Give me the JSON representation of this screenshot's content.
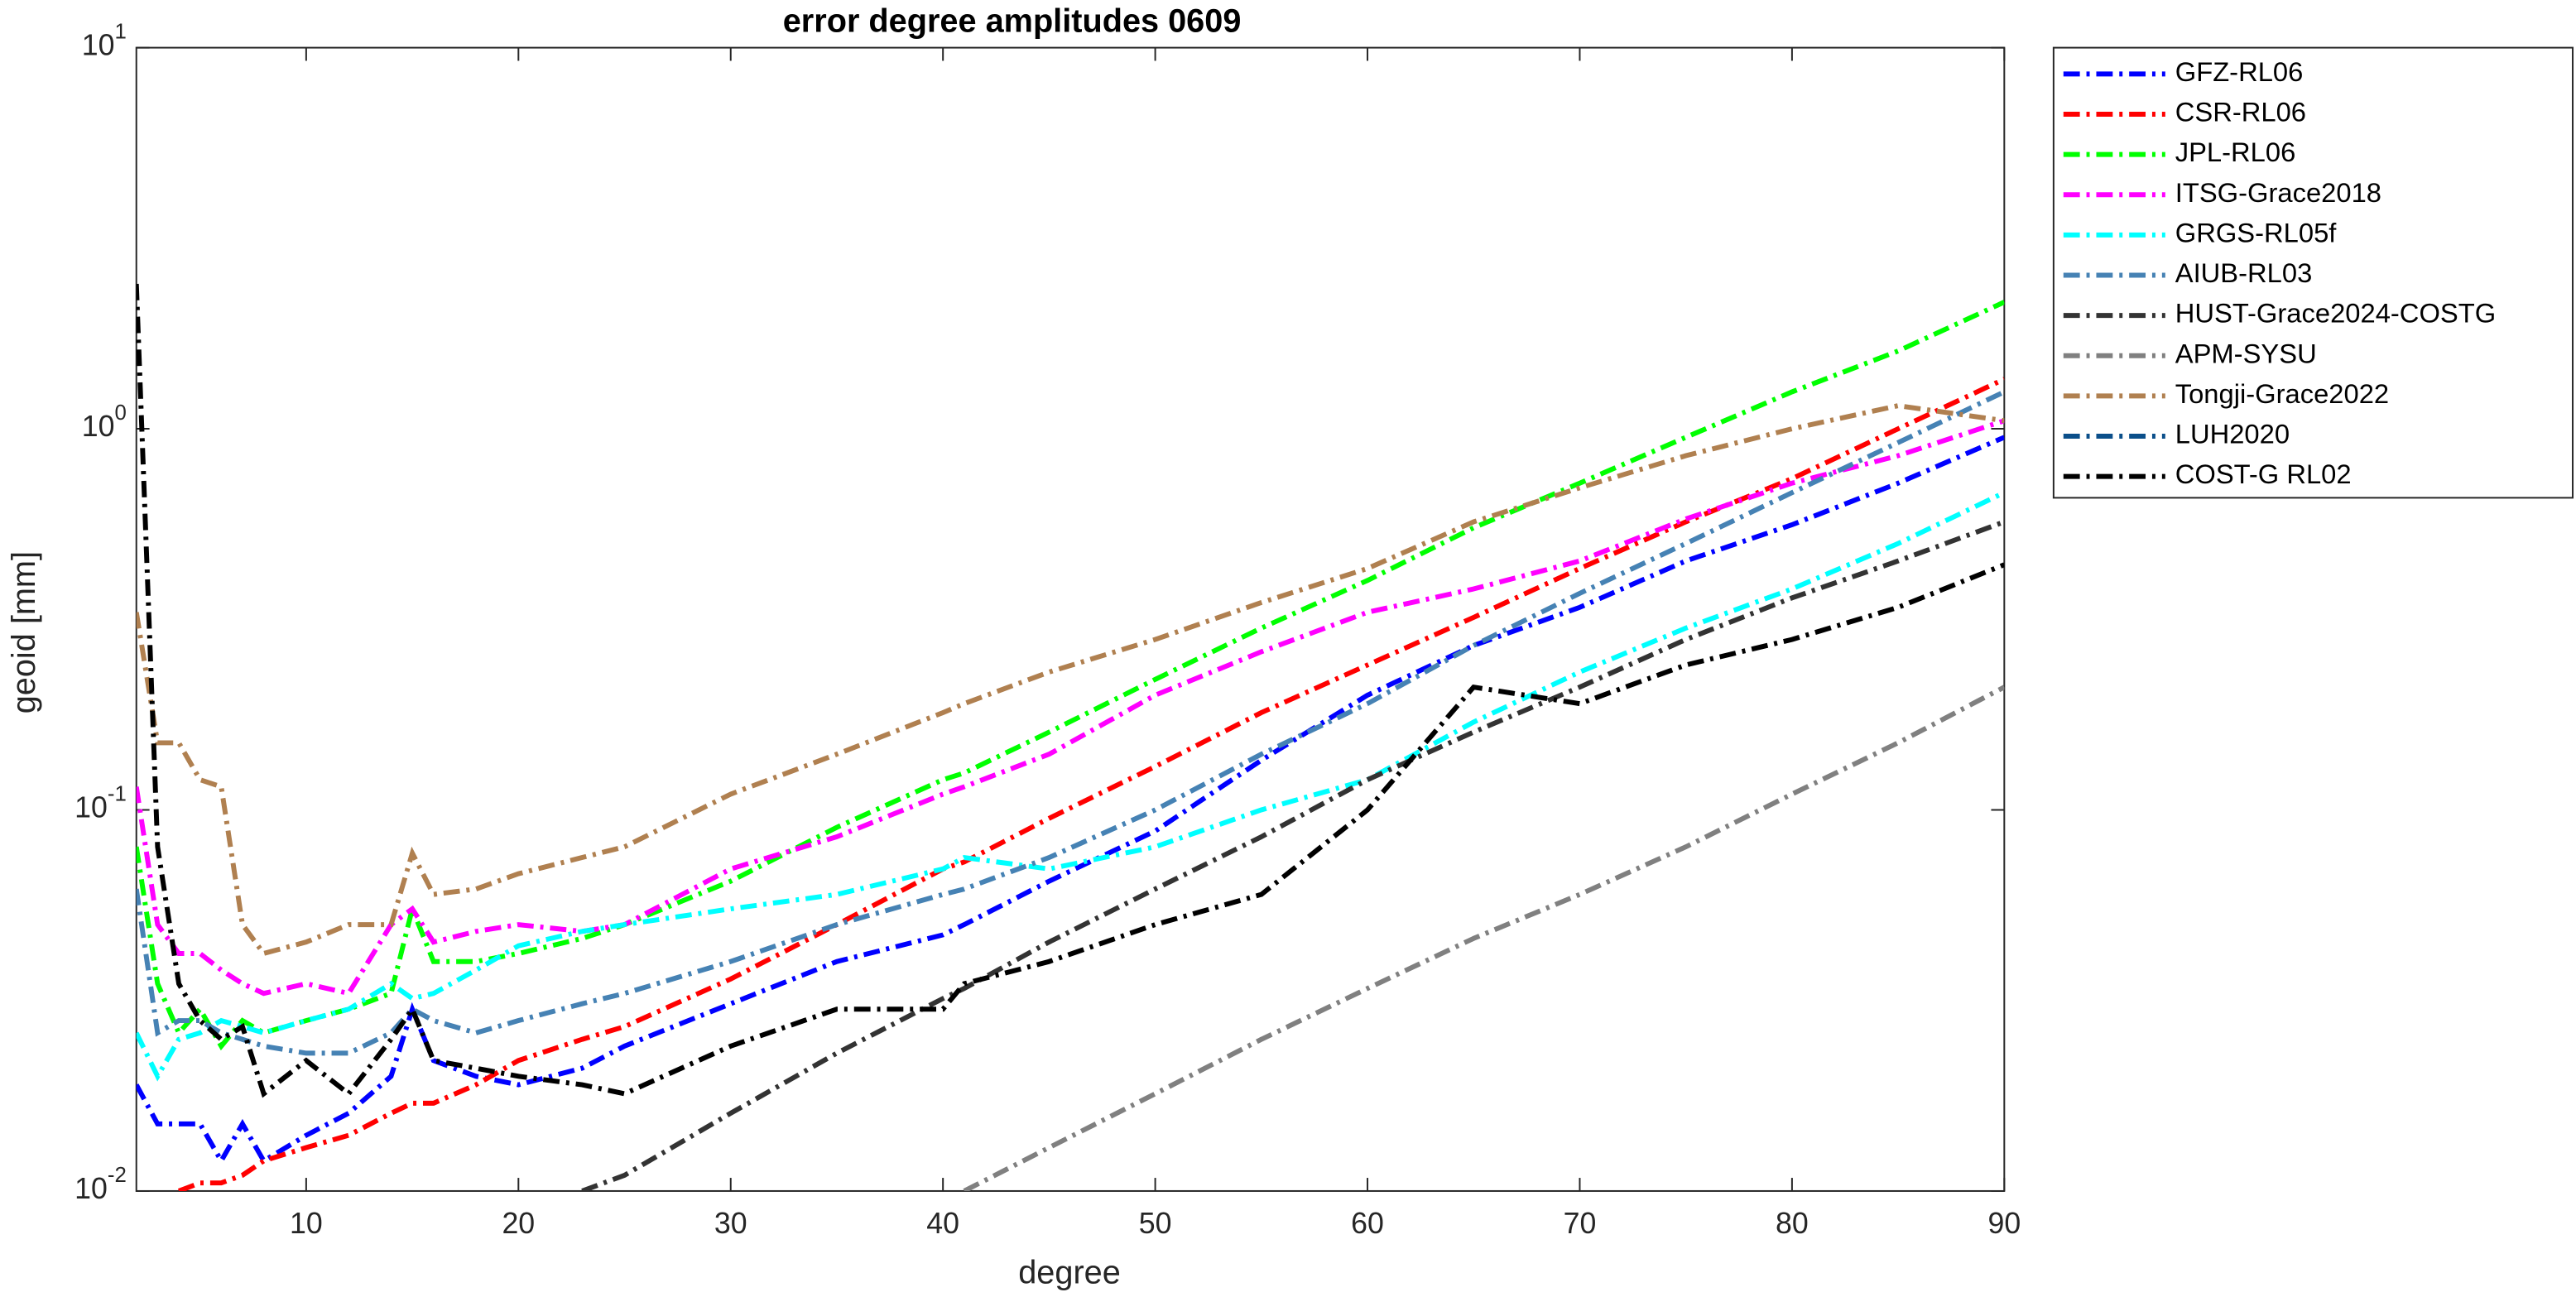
{
  "chart_data": {
    "type": "line",
    "title": "error degree amplitudes 0609",
    "xlabel": "degree",
    "ylabel": "geoid [mm]",
    "log_y": true,
    "legend": "outside-right-top",
    "x": [
      2,
      3,
      4,
      5,
      6,
      7,
      8,
      10,
      12,
      14,
      15,
      16,
      18,
      20,
      23,
      25,
      30,
      35,
      40,
      41,
      45,
      50,
      55,
      60,
      65,
      70,
      75,
      80,
      85,
      90
    ],
    "xlim": [
      2,
      90
    ],
    "xticks": [
      10,
      20,
      30,
      40,
      50,
      60,
      70,
      80,
      90
    ],
    "ylim": [
      0.01,
      10
    ],
    "yticks": [
      {
        "value": 0.01,
        "label": "10^-2"
      },
      {
        "value": 0.1,
        "label": "10^-1"
      },
      {
        "value": 1,
        "label": "10^0"
      },
      {
        "value": 10,
        "label": "10^1"
      }
    ],
    "series": [
      {
        "name": "GFZ-RL06",
        "color": "#0000ff",
        "values": [
          0.019,
          0.015,
          0.015,
          0.015,
          0.012,
          0.015,
          0.012,
          0.014,
          0.016,
          0.02,
          0.03,
          0.022,
          0.02,
          0.019,
          0.021,
          0.024,
          0.031,
          0.04,
          0.047,
          0.05,
          0.065,
          0.088,
          0.135,
          0.2,
          0.27,
          0.34,
          0.45,
          0.56,
          0.72,
          0.95
        ]
      },
      {
        "name": "CSR-RL06",
        "color": "#ff0000",
        "values": [
          null,
          null,
          0.01,
          0.0105,
          0.0105,
          0.011,
          0.012,
          0.013,
          0.014,
          0.016,
          0.017,
          0.017,
          0.019,
          0.022,
          0.025,
          0.027,
          0.036,
          0.05,
          0.07,
          0.073,
          0.095,
          0.13,
          0.18,
          0.24,
          0.32,
          0.43,
          0.57,
          0.74,
          1.0,
          1.35
        ]
      },
      {
        "name": "JPL-RL06",
        "color": "#00ff00",
        "values": [
          0.08,
          0.035,
          0.026,
          0.03,
          0.024,
          0.028,
          0.026,
          0.028,
          0.03,
          0.033,
          0.055,
          0.04,
          0.04,
          0.042,
          0.046,
          0.05,
          0.065,
          0.09,
          0.12,
          0.125,
          0.16,
          0.22,
          0.3,
          0.4,
          0.55,
          0.72,
          0.95,
          1.25,
          1.6,
          2.15
        ]
      },
      {
        "name": "ITSG-Grace2018",
        "color": "#ff00ff",
        "values": [
          0.115,
          0.05,
          0.042,
          0.042,
          0.038,
          0.035,
          0.033,
          0.035,
          0.033,
          0.05,
          0.055,
          0.045,
          0.048,
          0.05,
          0.048,
          0.05,
          0.07,
          0.085,
          0.11,
          0.115,
          0.14,
          0.2,
          0.26,
          0.33,
          0.38,
          0.45,
          0.58,
          0.72,
          0.85,
          1.05
        ]
      },
      {
        "name": "GRGS-RL05f",
        "color": "#00ffff",
        "values": [
          0.026,
          0.02,
          0.025,
          0.026,
          0.028,
          0.027,
          0.026,
          0.028,
          0.03,
          0.035,
          0.032,
          0.033,
          0.038,
          0.044,
          0.048,
          0.05,
          0.055,
          0.06,
          0.07,
          0.075,
          0.07,
          0.08,
          0.1,
          0.12,
          0.17,
          0.23,
          0.3,
          0.38,
          0.5,
          0.68
        ]
      },
      {
        "name": "AIUB-RL03",
        "color": "#4682b4",
        "values": [
          0.062,
          0.026,
          0.028,
          0.028,
          0.026,
          0.025,
          0.024,
          0.023,
          0.023,
          0.026,
          0.03,
          0.028,
          0.026,
          0.028,
          0.031,
          0.033,
          0.04,
          0.05,
          0.06,
          0.062,
          0.075,
          0.1,
          0.14,
          0.19,
          0.27,
          0.37,
          0.5,
          0.68,
          0.92,
          1.25
        ]
      },
      {
        "name": "HUST-Grace2024-COSTG",
        "color": "#333333",
        "values": [
          null,
          null,
          null,
          null,
          null,
          null,
          null,
          null,
          null,
          null,
          null,
          null,
          null,
          null,
          0.01,
          0.011,
          0.016,
          0.023,
          0.032,
          0.034,
          0.045,
          0.062,
          0.085,
          0.12,
          0.16,
          0.21,
          0.28,
          0.36,
          0.45,
          0.57
        ]
      },
      {
        "name": "APM-SYSU",
        "color": "#808080",
        "values": [
          null,
          null,
          null,
          null,
          null,
          null,
          null,
          null,
          null,
          null,
          null,
          null,
          null,
          null,
          null,
          null,
          null,
          null,
          null,
          0.01,
          0.013,
          0.018,
          0.025,
          0.034,
          0.046,
          0.06,
          0.08,
          0.11,
          0.15,
          0.21
        ]
      },
      {
        "name": "Tongji-Grace2022",
        "color": "#b08050",
        "values": [
          0.33,
          0.15,
          0.15,
          0.12,
          0.115,
          0.05,
          0.042,
          0.045,
          0.05,
          0.05,
          0.077,
          0.06,
          0.062,
          0.068,
          0.075,
          0.08,
          0.11,
          0.14,
          0.18,
          0.19,
          0.23,
          0.28,
          0.35,
          0.43,
          0.57,
          0.7,
          0.85,
          1.0,
          1.15,
          1.05
        ]
      },
      {
        "name": "LUH2020",
        "color": "#0b4f8a",
        "values": [
          null,
          null,
          null,
          null,
          null,
          null,
          null,
          null,
          null,
          null,
          null,
          null,
          null,
          null,
          null,
          null,
          null,
          null,
          null,
          null,
          null,
          null,
          null,
          null,
          null,
          null,
          null,
          null,
          null,
          null
        ]
      },
      {
        "name": "COST-G RL02",
        "color": "#000000",
        "values": [
          2.4,
          0.08,
          0.035,
          0.028,
          0.025,
          0.027,
          0.018,
          0.022,
          0.018,
          0.025,
          0.03,
          0.022,
          0.021,
          0.02,
          0.019,
          0.018,
          0.024,
          0.03,
          0.03,
          0.035,
          0.04,
          0.05,
          0.06,
          0.1,
          0.21,
          0.19,
          0.24,
          0.28,
          0.34,
          0.44
        ]
      }
    ]
  }
}
